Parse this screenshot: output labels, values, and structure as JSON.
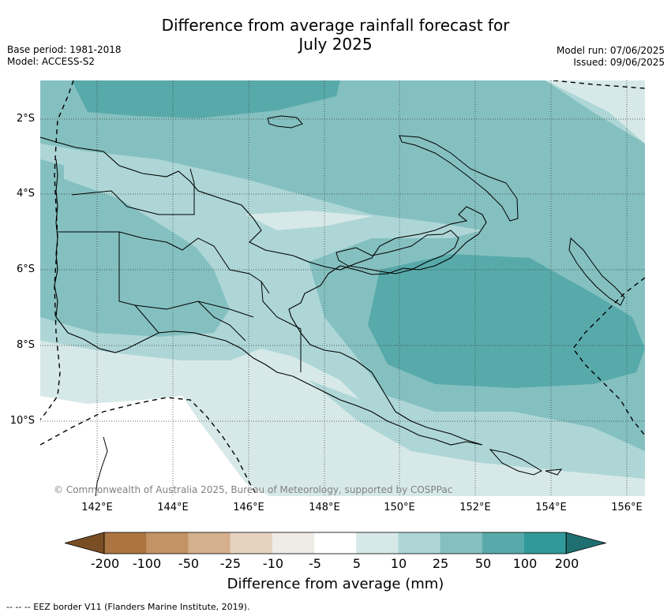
{
  "title_line1": "Difference from average rainfall forecast for",
  "title_line2": "July 2025",
  "base_period": "Base period: 1981-2018",
  "model": "Model: ACCESS-S2",
  "model_run": "Model run: 07/06/2025",
  "issued": "Issued: 09/06/2025",
  "longitude_labels": [
    "142°E",
    "144°E",
    "146°E",
    "148°E",
    "150°E",
    "152°E",
    "154°E",
    "156°E"
  ],
  "latitude_labels": [
    "2°S",
    "4°S",
    "6°S",
    "8°S",
    "10°S"
  ],
  "colorbar": {
    "ticks": [
      "-200",
      "-100",
      "-50",
      "-25",
      "-10",
      "-5",
      "5",
      "10",
      "25",
      "50",
      "100",
      "200"
    ],
    "colors": [
      "#7a4e24",
      "#ab7441",
      "#c39365",
      "#d4b08e",
      "#e6d2bf",
      "#efebe7",
      "#ffffff",
      "#d6e9e8",
      "#aed6d6",
      "#85c0c0",
      "#58aaaa",
      "#31999a",
      "#1f6f70"
    ],
    "label": "Difference from average (mm)"
  },
  "copyright": "© Commonwealth of Australia 2025, Bureau of Meteorology, supported by COSPPac",
  "legend_note": "-- -- -- EEZ border V11 (Flanders Marine Institute, 2019)."
}
